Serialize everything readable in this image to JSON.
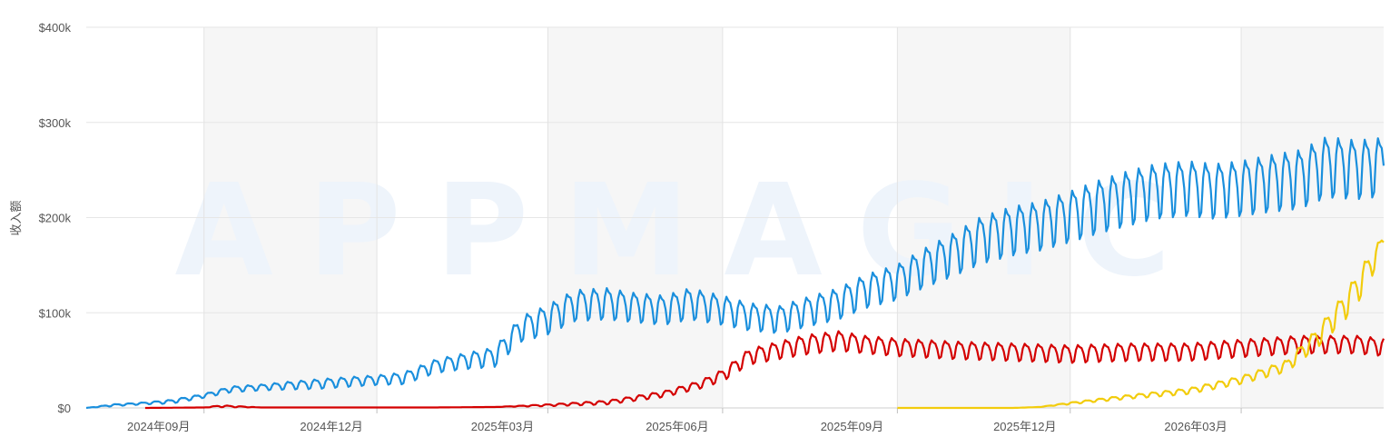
{
  "chart_data": {
    "type": "line",
    "title": "",
    "ylabel": "收入额",
    "watermark": "APPMAGIC",
    "y_ticks": [
      {
        "value": 0,
        "label": "$0"
      },
      {
        "value": 100000,
        "label": "$100k"
      },
      {
        "value": 200000,
        "label": "$200k"
      },
      {
        "value": 300000,
        "label": "$300k"
      },
      {
        "value": 400000,
        "label": "$400k"
      }
    ],
    "ylim": [
      0,
      400000
    ],
    "xlim": [
      "2024-07-01",
      "2026-05-15"
    ],
    "x_ticks": [
      {
        "date": "2024-09-01",
        "label": "2024年09月"
      },
      {
        "date": "2024-12-01",
        "label": "2024年12月"
      },
      {
        "date": "2025-03-01",
        "label": "2025年03月"
      },
      {
        "date": "2025-06-01",
        "label": "2025年06月"
      },
      {
        "date": "2025-09-01",
        "label": "2025年09月"
      },
      {
        "date": "2025-12-01",
        "label": "2025年12月"
      },
      {
        "date": "2026-03-01",
        "label": "2026年03月"
      }
    ],
    "shaded_bands": [
      {
        "start": "2024-09-01",
        "end": "2024-12-01"
      },
      {
        "start": "2025-03-01",
        "end": "2025-06-01"
      },
      {
        "start": "2025-09-01",
        "end": "2025-12-01"
      },
      {
        "start": "2026-03-01",
        "end": "2026-05-15"
      }
    ],
    "grid": true,
    "series": [
      {
        "color": "#1a8fdd",
        "x": [
          "2024-07-01",
          "2024-07-15",
          "2024-08-01",
          "2024-08-15",
          "2024-09-01",
          "2024-09-15",
          "2024-10-01",
          "2024-10-15",
          "2024-11-01",
          "2024-11-15",
          "2024-12-01",
          "2024-12-15",
          "2025-01-01",
          "2025-01-15",
          "2025-02-01",
          "2025-02-15",
          "2025-03-01",
          "2025-03-15",
          "2025-04-01",
          "2025-04-15",
          "2025-05-01",
          "2025-05-15",
          "2025-06-01",
          "2025-06-15",
          "2025-07-01",
          "2025-07-15",
          "2025-08-01",
          "2025-08-15",
          "2025-09-01",
          "2025-09-15",
          "2025-10-01",
          "2025-10-15",
          "2025-11-01",
          "2025-11-15",
          "2025-12-01",
          "2025-12-15",
          "2026-01-01",
          "2026-01-15",
          "2026-02-01",
          "2026-02-15",
          "2026-03-01",
          "2026-03-15",
          "2026-04-01",
          "2026-04-15",
          "2026-05-01",
          "2026-05-15"
        ],
        "values": [
          0,
          3000,
          5000,
          7000,
          13000,
          20000,
          22000,
          24000,
          26000,
          28000,
          30000,
          32000,
          45000,
          50000,
          55000,
          85000,
          95000,
          110000,
          112000,
          108000,
          105000,
          112000,
          105000,
          98000,
          95000,
          103000,
          112000,
          125000,
          135000,
          150000,
          165000,
          180000,
          190000,
          195000,
          205000,
          215000,
          225000,
          232000,
          235000,
          232000,
          235000,
          240000,
          245000,
          258000,
          255000,
          258000
        ],
        "amplitude": [
          0,
          1000,
          1000,
          2000,
          2000,
          3000,
          3000,
          4000,
          5000,
          5000,
          5000,
          6000,
          7000,
          8000,
          10000,
          13000,
          15000,
          16000,
          16000,
          15000,
          15000,
          16000,
          15000,
          14000,
          14000,
          15000,
          16000,
          17000,
          18000,
          20000,
          22000,
          24000,
          25000,
          25000,
          26000,
          27000,
          28000,
          28000,
          28000,
          28000,
          28000,
          29000,
          30000,
          31000,
          30000,
          30000
        ]
      },
      {
        "color": "#d40000",
        "x": [
          "2024-08-01",
          "2024-09-01",
          "2024-09-10",
          "2024-10-01",
          "2025-01-01",
          "2025-02-01",
          "2025-03-01",
          "2025-04-01",
          "2025-05-01",
          "2025-05-20",
          "2025-06-01",
          "2025-06-15",
          "2025-07-01",
          "2025-07-15",
          "2025-08-01",
          "2025-08-15",
          "2025-09-01",
          "2025-10-01",
          "2025-11-01",
          "2025-12-01",
          "2026-01-01",
          "2026-02-01",
          "2026-03-01",
          "2026-04-01",
          "2026-05-01",
          "2026-05-15"
        ],
        "values": [
          0,
          500,
          2000,
          500,
          500,
          1000,
          3000,
          6000,
          15000,
          25000,
          35000,
          55000,
          62000,
          68000,
          72000,
          68000,
          65000,
          62000,
          60000,
          58000,
          60000,
          60000,
          64000,
          68000,
          68000,
          65000
        ],
        "amplitude": [
          0,
          0,
          1000,
          0,
          0,
          0,
          1000,
          2000,
          3000,
          4000,
          6000,
          8000,
          9000,
          10000,
          10000,
          9000,
          9000,
          9000,
          9000,
          9000,
          9000,
          9000,
          9000,
          9000,
          9000,
          9000
        ]
      },
      {
        "color": "#f2cc0c",
        "x": [
          "2025-09-01",
          "2025-10-10",
          "2025-11-01",
          "2025-11-15",
          "2025-12-01",
          "2026-01-01",
          "2026-02-01",
          "2026-03-01",
          "2026-03-25",
          "2026-04-10",
          "2026-04-25",
          "2026-05-05",
          "2026-05-15"
        ],
        "values": [
          0,
          0,
          0,
          1000,
          5000,
          12000,
          18000,
          30000,
          45000,
          75000,
          110000,
          140000,
          175000
        ],
        "amplitude": [
          0,
          0,
          0,
          0,
          1000,
          2000,
          3000,
          4000,
          6000,
          10000,
          14000,
          16000,
          8000
        ]
      }
    ]
  }
}
